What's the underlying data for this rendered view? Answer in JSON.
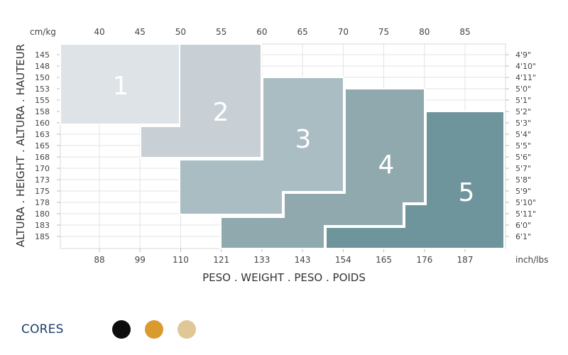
{
  "chart_data": {
    "type": "table",
    "top_axis_unit": "cm/kg",
    "top_ticks": [
      40,
      45,
      50,
      55,
      60,
      65,
      70,
      75,
      80,
      85
    ],
    "bottom_axis_unit": "inch/lbs",
    "bottom_ticks": [
      88,
      99,
      110,
      121,
      133,
      143,
      154,
      165,
      176,
      187
    ],
    "heights_cm": [
      145,
      148,
      150,
      153,
      155,
      158,
      160,
      163,
      165,
      168,
      170,
      173,
      175,
      178,
      180,
      183,
      185
    ],
    "heights_ft": [
      "4'9\"",
      "4'10\"",
      "4'11\"",
      "5'0\"",
      "5'1\"",
      "5'2\"",
      "5'3\"",
      "5'4\"",
      "5'5\"",
      "5'6\"",
      "5'7\"",
      "5'8\"",
      "5'9\"",
      "5'10\"",
      "5'11\"",
      "6'0\"",
      "6'1\""
    ],
    "xlabel": "PESO . WEIGHT . PESO . POIDS",
    "ylabel": "ALTURA . HEIGHT . ALTURA . HAUTEUR",
    "sizes": [
      {
        "name": "1",
        "color": "#dde3e7",
        "top_weight_range": [
          35,
          50
        ],
        "bottom_weight_range": [
          35,
          50
        ],
        "height_range": [
          145,
          160
        ],
        "step_height": 160
      },
      {
        "name": "2",
        "color": "#c8d0d6",
        "top_weight_range": [
          50,
          60
        ],
        "bottom_weight_range": [
          45,
          60
        ],
        "height_range": [
          145,
          168
        ],
        "step_height": 160
      },
      {
        "name": "3",
        "color": "#a9bdc2",
        "top_weight_range": [
          60,
          70
        ],
        "bottom_weight_range": [
          50,
          63
        ],
        "height_range": [
          150,
          180
        ],
        "step_height": 168
      },
      {
        "name": "4",
        "color": "#8fa9ae",
        "top_weight_range": [
          70,
          80
        ],
        "bottom_weight_range": [
          55,
          72
        ],
        "height_range": [
          153,
          183
        ],
        "step_height": 175
      },
      {
        "name": "5",
        "color": "#6f959c",
        "top_weight_range": [
          80,
          90
        ],
        "bottom_weight_range": [
          68,
          90
        ],
        "height_range": [
          158,
          185
        ],
        "step_height": 178
      }
    ]
  },
  "legend": {
    "label": "CORES",
    "colors": [
      {
        "name": "black",
        "hex": "#0d0d0d"
      },
      {
        "name": "honey",
        "hex": "#d99a2e"
      },
      {
        "name": "nude",
        "hex": "#dfc797"
      }
    ]
  }
}
